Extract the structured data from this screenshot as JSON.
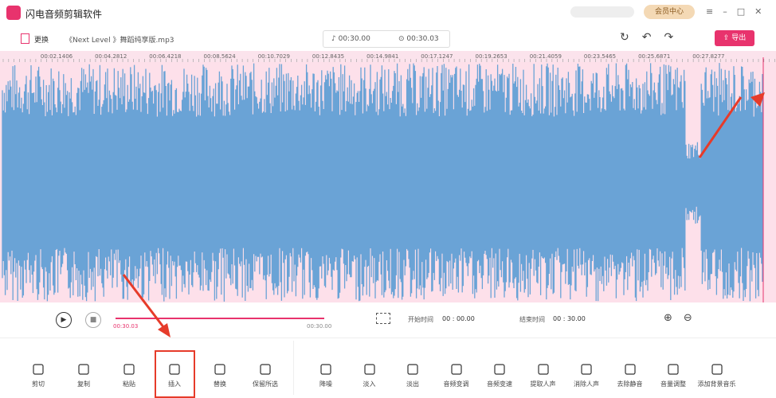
{
  "app": {
    "title": "闪电音频剪辑软件",
    "vip": "会员中心"
  },
  "toolbar": {
    "replace": "更换",
    "file": "《Next Level 》舞蹈纯享版.mp3",
    "duration": "00:30.00",
    "selection": "00:30.03",
    "export": "导出"
  },
  "ruler": {
    "labels": [
      "00:02.1406",
      "00:04.2812",
      "00:06.4218",
      "00:08.5624",
      "00:10.7029",
      "00:12.8435",
      "00:14.9841",
      "00:17.1247",
      "00:19.2653",
      "00:21.4059",
      "00:23.5465",
      "00:25.6871",
      "00:27.8277"
    ]
  },
  "playback": {
    "current": "00:30.03",
    "total": "00:30.00",
    "start_label": "开始时间",
    "start": "00 : 00.00",
    "end_label": "结束时间",
    "end": "00 : 30.00"
  },
  "tools": {
    "left": [
      "剪切",
      "复制",
      "粘贴",
      "插入",
      "替换",
      "保留所选"
    ],
    "right": [
      "降噪",
      "淡入",
      "淡出",
      "音频变调",
      "音频变速",
      "提取人声",
      "消除人声",
      "去除静音",
      "音量调整",
      "添加背景音乐"
    ]
  }
}
